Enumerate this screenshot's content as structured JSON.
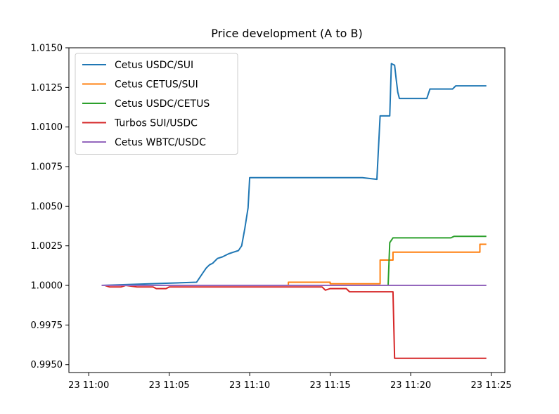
{
  "chart_data": {
    "type": "line",
    "title": "Price development (A to B)",
    "xlabel": "",
    "ylabel": "",
    "x_ticks": [
      "23 11:00",
      "23 11:05",
      "23 11:10",
      "23 11:15",
      "23 11:20",
      "23 11:25"
    ],
    "y_ticks": [
      "0.9950",
      "0.9975",
      "1.0000",
      "1.0025",
      "1.0050",
      "1.0075",
      "1.0100",
      "1.0125",
      "1.0150"
    ],
    "xlim": [
      "23 11:00",
      "23 11:25"
    ],
    "ylim": [
      0.9945,
      1.015
    ],
    "grid": false,
    "legend": "top-left",
    "series": [
      {
        "name": "Cetus USDC/SUI",
        "color": "#1f77b4",
        "x": [
          "11:00:48",
          "11:06:42",
          "11:06:54",
          "11:07:06",
          "11:07:18",
          "11:07:30",
          "11:07:42",
          "11:08:00",
          "11:08:18",
          "11:08:42",
          "11:09:00",
          "11:09:18",
          "11:09:30",
          "11:09:42",
          "11:09:54",
          "11:10:00",
          "11:13:00",
          "11:16:00",
          "11:17:00",
          "11:17:54",
          "11:18:06",
          "11:18:18",
          "11:18:42",
          "11:18:48",
          "11:19:00",
          "11:19:06",
          "11:19:12",
          "11:19:18",
          "11:21:00",
          "11:21:12",
          "11:22:00",
          "11:22:36",
          "11:22:48",
          "11:24:42"
        ],
        "values": [
          1.0,
          1.0002,
          1.0005,
          1.0008,
          1.0011,
          1.0013,
          1.0014,
          1.0017,
          1.0018,
          1.002,
          1.0021,
          1.0022,
          1.0025,
          1.0036,
          1.0049,
          1.0068,
          1.0068,
          1.0068,
          1.0068,
          1.0067,
          1.0107,
          1.0107,
          1.0107,
          1.014,
          1.0139,
          1.013,
          1.0122,
          1.0118,
          1.0118,
          1.0124,
          1.0124,
          1.0124,
          1.0126,
          1.0126
        ]
      },
      {
        "name": "Cetus CETUS/SUI",
        "color": "#ff7f0e",
        "x": [
          "11:00:48",
          "11:12:06",
          "11:12:24",
          "11:13:00",
          "11:15:00",
          "11:17:54",
          "11:18:06",
          "11:18:42",
          "11:18:54",
          "11:22:00",
          "11:24:06",
          "11:24:18",
          "11:24:42"
        ],
        "values": [
          1.0,
          1.0,
          1.0002,
          1.0002,
          1.0001,
          1.0001,
          1.0016,
          1.0016,
          1.0021,
          1.0021,
          1.0021,
          1.0026,
          1.0026
        ],
        "x_steps": true
      },
      {
        "name": "Cetus USDC/CETUS",
        "color": "#2ca02c",
        "x": [
          "11:00:48",
          "11:18:36",
          "11:18:42",
          "11:18:54",
          "11:22:30",
          "11:22:42",
          "11:24:42"
        ],
        "values": [
          1.0,
          1.0,
          1.0027,
          1.003,
          1.003,
          1.0031,
          1.0031
        ]
      },
      {
        "name": "Turbos SUI/USDC",
        "color": "#d62728",
        "x": [
          "11:00:48",
          "11:01:00",
          "11:01:18",
          "11:02:00",
          "11:02:18",
          "11:03:00",
          "11:04:00",
          "11:04:12",
          "11:04:48",
          "11:05:00",
          "11:10:00",
          "11:13:00",
          "11:14:30",
          "11:14:42",
          "11:15:00",
          "11:15:18",
          "11:16:00",
          "11:16:12",
          "11:17:00",
          "11:18:00",
          "11:18:24",
          "11:18:54",
          "11:19:00",
          "11:21:00",
          "11:24:42"
        ],
        "values": [
          1.0,
          1.0,
          0.9999,
          0.9999,
          1.0,
          0.9999,
          0.9999,
          0.9998,
          0.9998,
          0.9999,
          0.9999,
          0.9999,
          0.9999,
          0.9997,
          0.9998,
          0.9998,
          0.9998,
          0.9996,
          0.9996,
          0.9996,
          0.9996,
          0.9996,
          0.9954,
          0.9954,
          0.9954
        ]
      },
      {
        "name": "Cetus WBTC/USDC",
        "color": "#9467bd",
        "x": [
          "11:00:48",
          "11:24:42"
        ],
        "values": [
          1.0,
          1.0
        ]
      }
    ]
  }
}
